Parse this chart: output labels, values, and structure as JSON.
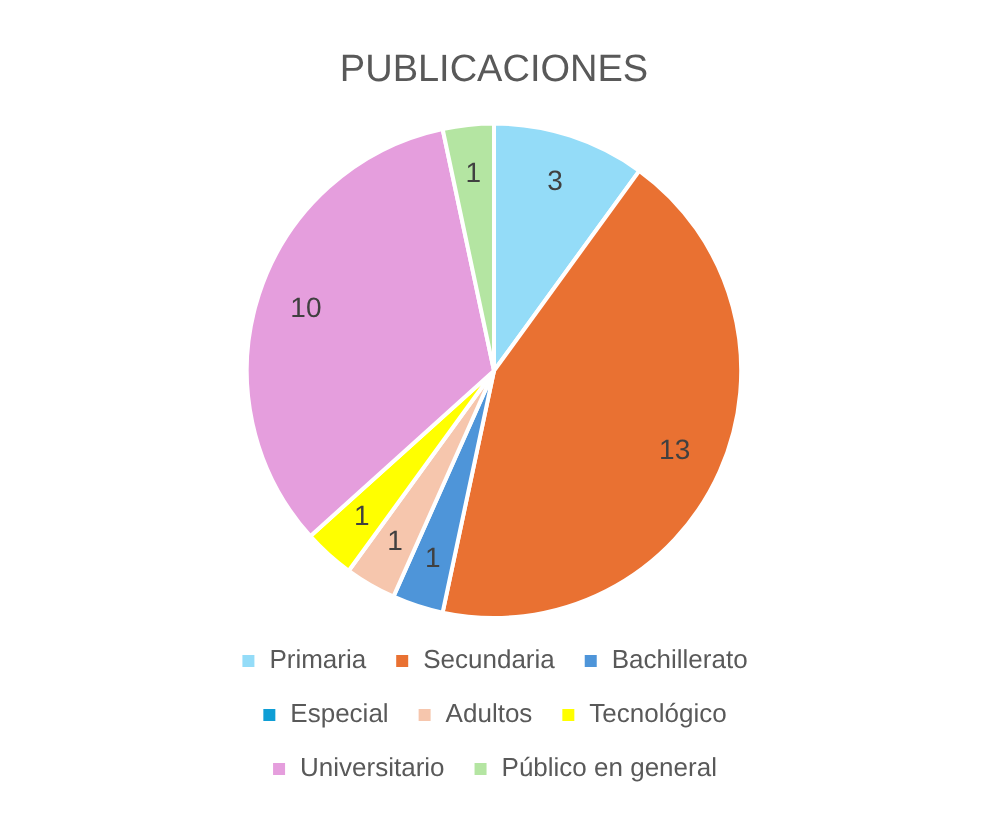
{
  "chart_data": {
    "type": "pie",
    "title": "PUBLICACIONES",
    "categories": [
      "Primaria",
      "Secundaria",
      "Bachillerato",
      "Especial",
      "Adultos",
      "Tecnológico",
      "Universitario",
      "Público en general"
    ],
    "values": [
      3,
      13,
      1,
      0,
      1,
      1,
      10,
      1
    ],
    "value_labels": [
      "3",
      "13",
      "1",
      null,
      "1",
      "1",
      "10",
      "1"
    ],
    "colors": [
      "#94dcf8",
      "#e97132",
      "#4e95d9",
      "#0f9ed5",
      "#f6c6ad",
      "#ffff00",
      "#e59edd",
      "#b4e5a2"
    ],
    "legend": "bottom"
  }
}
